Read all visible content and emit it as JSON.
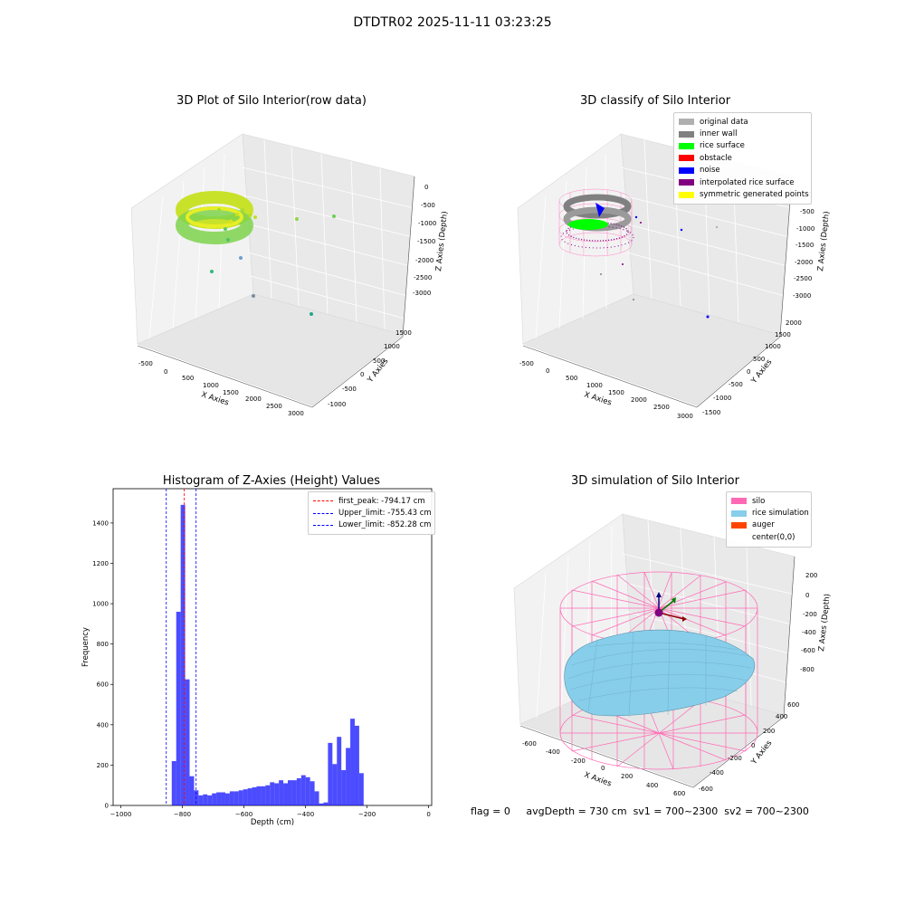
{
  "figure": {
    "title": "DTDTR02 2025-11-11 03:23:25"
  },
  "panels": {
    "raw": {
      "title": "3D Plot of Silo Interior(row data)",
      "x_label": "X Axies",
      "y_label": "Y Axies",
      "z_label": "Z Axies (Depth)",
      "x_ticks": [
        "-500",
        "0",
        "500",
        "1000",
        "1500",
        "2000",
        "2500",
        "3000"
      ],
      "y_ticks": [
        "-1000",
        "-500",
        "0",
        "500",
        "1000",
        "1500"
      ],
      "z_ticks": [
        "0",
        "-500",
        "-1000",
        "-1500",
        "-2000",
        "-2500",
        "-3000"
      ]
    },
    "classify": {
      "title": "3D classify of Silo Interior",
      "x_label": "X Axies",
      "y_label": "Y Axies",
      "z_label": "Z Axies (Depth)",
      "x_ticks": [
        "-500",
        "0",
        "500",
        "1000",
        "1500",
        "2000",
        "2500",
        "3000"
      ],
      "y_ticks": [
        "-1500",
        "-1000",
        "-500",
        "0",
        "500",
        "1000",
        "1500",
        "2000"
      ],
      "z_ticks": [
        "0",
        "-500",
        "-1000",
        "-1500",
        "-2000",
        "-2500",
        "-3000"
      ],
      "legend": [
        {
          "label": "original data",
          "color": "#b0b0b0"
        },
        {
          "label": "inner wall",
          "color": "#808080"
        },
        {
          "label": "rice surface",
          "color": "#00ff00"
        },
        {
          "label": "obstacle",
          "color": "#ff0000"
        },
        {
          "label": "noise",
          "color": "#0000ff"
        },
        {
          "label": "interpolated rice surface",
          "color": "#800080"
        },
        {
          "label": "symmetric generated points",
          "color": "#ffff00"
        }
      ]
    },
    "simulation": {
      "title": "3D simulation of Silo Interior",
      "x_label": "X Axies",
      "y_label": "Y Axies",
      "z_label": "Z Axes (Depth)",
      "x_ticks": [
        "-600",
        "-400",
        "-200",
        "0",
        "200",
        "400",
        "600"
      ],
      "y_ticks": [
        "-600",
        "-400",
        "-200",
        "0",
        "200",
        "400",
        "600"
      ],
      "z_ticks": [
        "200",
        "0",
        "-200",
        "-400",
        "-600",
        "-800"
      ],
      "legend": [
        {
          "label": "silo",
          "color": "#ff69b4"
        },
        {
          "label": "rice simulation",
          "color": "#87ceeb"
        },
        {
          "label": "auger",
          "color": "#ff4500"
        },
        {
          "label": "center(0,0)",
          "color": ""
        }
      ]
    }
  },
  "chart_data": {
    "type": "bar",
    "title": "Histogram of Z-Axies (Height) Values",
    "xlabel": "Depth (cm)",
    "ylabel": "Frequency",
    "xlim": [
      -1025,
      10
    ],
    "ylim": [
      0,
      1570
    ],
    "xticks": [
      -1000,
      -800,
      -600,
      -400,
      -200,
      0
    ],
    "yticks": [
      0,
      200,
      400,
      600,
      800,
      1000,
      1200,
      1400
    ],
    "bar_color": "#0000ff",
    "bin_width": 14.5,
    "bins": [
      {
        "x0": -834.5,
        "count": 220
      },
      {
        "x0": -820,
        "count": 960
      },
      {
        "x0": -805.5,
        "count": 1490
      },
      {
        "x0": -791,
        "count": 625
      },
      {
        "x0": -776.5,
        "count": 145
      },
      {
        "x0": -762,
        "count": 75
      },
      {
        "x0": -747.5,
        "count": 50
      },
      {
        "x0": -733,
        "count": 55
      },
      {
        "x0": -718.5,
        "count": 50
      },
      {
        "x0": -704,
        "count": 60
      },
      {
        "x0": -689.5,
        "count": 65
      },
      {
        "x0": -675,
        "count": 65
      },
      {
        "x0": -660.5,
        "count": 60
      },
      {
        "x0": -646,
        "count": 70
      },
      {
        "x0": -631.5,
        "count": 70
      },
      {
        "x0": -617,
        "count": 75
      },
      {
        "x0": -602.5,
        "count": 80
      },
      {
        "x0": -588,
        "count": 85
      },
      {
        "x0": -573.5,
        "count": 90
      },
      {
        "x0": -559,
        "count": 95
      },
      {
        "x0": -544.5,
        "count": 95
      },
      {
        "x0": -530,
        "count": 100
      },
      {
        "x0": -515.5,
        "count": 115
      },
      {
        "x0": -501,
        "count": 110
      },
      {
        "x0": -486.5,
        "count": 125
      },
      {
        "x0": -472,
        "count": 110
      },
      {
        "x0": -457.5,
        "count": 125
      },
      {
        "x0": -443,
        "count": 125
      },
      {
        "x0": -428.5,
        "count": 135
      },
      {
        "x0": -414,
        "count": 150
      },
      {
        "x0": -399.5,
        "count": 140
      },
      {
        "x0": -385,
        "count": 120
      },
      {
        "x0": -370.5,
        "count": 70
      },
      {
        "x0": -356,
        "count": 10
      },
      {
        "x0": -341.5,
        "count": 15
      },
      {
        "x0": -327,
        "count": 310
      },
      {
        "x0": -312.5,
        "count": 205
      },
      {
        "x0": -298,
        "count": 340
      },
      {
        "x0": -283.5,
        "count": 175
      },
      {
        "x0": -269,
        "count": 285
      },
      {
        "x0": -254.5,
        "count": 430
      },
      {
        "x0": -240,
        "count": 395
      },
      {
        "x0": -225.5,
        "count": 160
      }
    ],
    "vlines": [
      {
        "label": "first_peak: -794.17 cm",
        "x": -794.17,
        "color": "#ff0000"
      },
      {
        "label": "Upper_limit: -755.43 cm",
        "x": -755.43,
        "color": "#0000ff"
      },
      {
        "label": "Lower_limit: -852.28 cm",
        "x": -852.28,
        "color": "#0000ff"
      }
    ]
  },
  "footer": {
    "flag": "flag = 0",
    "avg_depth": "avgDepth = 730 cm",
    "sv1": "sv1 = 700~2300",
    "sv2": "sv2 = 700~2300"
  }
}
